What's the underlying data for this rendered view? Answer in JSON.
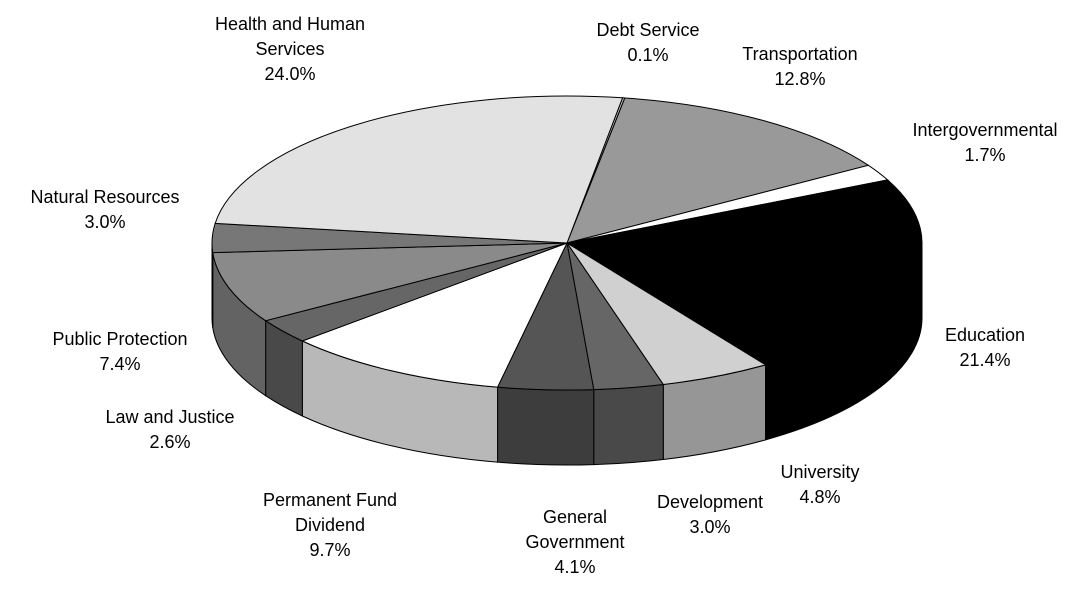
{
  "chart_data": {
    "type": "pie3d",
    "categories": [
      "Debt Service",
      "Transportation",
      "Intergovernmental",
      "Education",
      "University",
      "Development",
      "General Government",
      "Permanent Fund Dividend",
      "Law and Justice",
      "Public Protection",
      "Natural Resources",
      "Health and Human Services"
    ],
    "values": [
      0.1,
      12.8,
      1.7,
      21.4,
      4.8,
      3.0,
      4.1,
      9.7,
      2.6,
      7.4,
      3.0,
      24.0
    ],
    "value_labels": [
      "0.1%",
      "12.8%",
      "1.7%",
      "21.4%",
      "4.8%",
      "3.0%",
      "4.1%",
      "9.7%",
      "2.6%",
      "7.4%",
      "3.0%",
      "24.0%"
    ],
    "colors": [
      "#bbbbbb",
      "#999999",
      "#ffffff",
      "#000000",
      "#d0d0d0",
      "#666666",
      "#555555",
      "#ffffff",
      "#666666",
      "#8a8a8a",
      "#777777",
      "#e2e2e2"
    ]
  }
}
